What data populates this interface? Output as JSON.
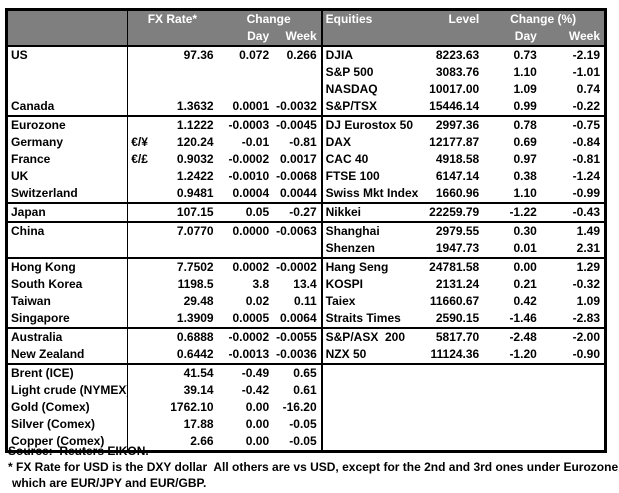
{
  "colors": {
    "header_bg": "#7f7f7f",
    "header_text": "#ffffff",
    "border": "#000000"
  },
  "headers": {
    "fx_rate": "FX Rate*",
    "fx_change": "Change",
    "fx_day": "Day",
    "fx_week": "Week",
    "equities": "Equities",
    "level": "Level",
    "eq_change": "Change (%)",
    "eq_day": "Day",
    "eq_week": "Week"
  },
  "rows": [
    {
      "label": "US",
      "sym": "",
      "rate": "97.36",
      "day": "0.072",
      "week": "0.266",
      "eq": "DJIA",
      "level": "8223.63",
      "eday": "0.73",
      "eweek": "-2.19",
      "sec": false,
      "ind": false
    },
    {
      "label": "",
      "sym": "",
      "rate": "",
      "day": "",
      "week": "",
      "eq": "S&P 500",
      "level": "3083.76",
      "eday": "1.10",
      "eweek": "-1.01",
      "sec": false,
      "ind": false
    },
    {
      "label": "",
      "sym": "",
      "rate": "",
      "day": "",
      "week": "",
      "eq": "NASDAQ",
      "level": "10017.00",
      "eday": "1.09",
      "eweek": "0.74",
      "sec": false,
      "ind": false
    },
    {
      "label": "Canada",
      "sym": "",
      "rate": "1.3632",
      "day": "0.0001",
      "week": "-0.0032",
      "eq": "S&P/TSX",
      "level": "15446.14",
      "eday": "0.99",
      "eweek": "-0.22",
      "sec": false,
      "ind": false
    },
    {
      "label": "Eurozone",
      "sym": "",
      "rate": "1.1222",
      "day": "-0.0003",
      "week": "-0.0045",
      "eq": "DJ Eurostox 50",
      "level": "2997.36",
      "eday": "0.78",
      "eweek": "-0.75",
      "sec": true,
      "ind": false
    },
    {
      "label": "Germany",
      "sym": "€/¥",
      "rate": "120.24",
      "day": "-0.01",
      "week": "-0.81",
      "eq": "DAX",
      "level": "12177.87",
      "eday": "0.69",
      "eweek": "-0.84",
      "sec": false,
      "ind": true
    },
    {
      "label": "France",
      "sym": "€/£",
      "rate": "0.9032",
      "day": "-0.0002",
      "week": "0.0017",
      "eq": "CAC 40",
      "level": "4918.58",
      "eday": "0.97",
      "eweek": "-0.81",
      "sec": false,
      "ind": true
    },
    {
      "label": "UK",
      "sym": "",
      "rate": "1.2422",
      "day": "-0.0010",
      "week": "-0.0068",
      "eq": "FTSE 100",
      "level": "6147.14",
      "eday": "0.38",
      "eweek": "-1.24",
      "sec": false,
      "ind": false
    },
    {
      "label": "Switzerland",
      "sym": "",
      "rate": "0.9481",
      "day": "0.0004",
      "week": "0.0044",
      "eq": "Swiss Mkt Index",
      "level": "1660.96",
      "eday": "1.10",
      "eweek": "-0.99",
      "sec": false,
      "ind": false
    },
    {
      "label": "Japan",
      "sym": "",
      "rate": "107.15",
      "day": "0.05",
      "week": "-0.27",
      "eq": "Nikkei",
      "level": "22259.79",
      "eday": "-1.22",
      "eweek": "-0.43",
      "sec": true,
      "ind": false
    },
    {
      "label": "China",
      "sym": "",
      "rate": "7.0770",
      "day": "0.0000",
      "week": "-0.0063",
      "eq": "Shanghai",
      "level": "2979.55",
      "eday": "0.30",
      "eweek": "1.49",
      "sec": true,
      "ind": false
    },
    {
      "label": "",
      "sym": "",
      "rate": "",
      "day": "",
      "week": "",
      "eq": "Shenzen",
      "level": "1947.73",
      "eday": "0.01",
      "eweek": "2.31",
      "sec": false,
      "ind": false
    },
    {
      "label": "Hong Kong",
      "sym": "",
      "rate": "7.7502",
      "day": "0.0002",
      "week": "-0.0002",
      "eq": "Hang Seng",
      "level": "24781.58",
      "eday": "0.00",
      "eweek": "1.29",
      "sec": true,
      "ind": false
    },
    {
      "label": "South Korea",
      "sym": "",
      "rate": "1198.5",
      "day": "3.8",
      "week": "13.4",
      "eq": "KOSPI",
      "level": "2131.24",
      "eday": "0.21",
      "eweek": "-0.32",
      "sec": false,
      "ind": false
    },
    {
      "label": "Taiwan",
      "sym": "",
      "rate": "29.48",
      "day": "0.02",
      "week": "0.11",
      "eq": "Taiex",
      "level": "11660.67",
      "eday": "0.42",
      "eweek": "1.09",
      "sec": false,
      "ind": false
    },
    {
      "label": "Singapore",
      "sym": "",
      "rate": "1.3909",
      "day": "0.0005",
      "week": "0.0064",
      "eq": "Straits Times",
      "level": "2590.15",
      "eday": "-1.46",
      "eweek": "-2.83",
      "sec": false,
      "ind": false
    },
    {
      "label": "Australia",
      "sym": "",
      "rate": "0.6888",
      "day": "-0.0002",
      "week": "-0.0055",
      "eq": "S&P/ASX  200",
      "level": "5817.70",
      "eday": "-2.48",
      "eweek": "-2.00",
      "sec": true,
      "ind": false
    },
    {
      "label": "New Zealand",
      "sym": "",
      "rate": "0.6442",
      "day": "-0.0013",
      "week": "-0.0036",
      "eq": "NZX 50",
      "level": "11124.36",
      "eday": "-1.20",
      "eweek": "-0.90",
      "sec": false,
      "ind": false
    },
    {
      "label": "Brent (ICE)",
      "sym": "",
      "rate": "41.54",
      "day": "-0.49",
      "week": "0.65",
      "eq": "",
      "level": "",
      "eday": "",
      "eweek": "",
      "sec": true,
      "ind": false
    },
    {
      "label": "Light crude (NYMEX)",
      "sym": "",
      "rate": "39.14",
      "day": "-0.42",
      "week": "0.61",
      "eq": "",
      "level": "",
      "eday": "",
      "eweek": "",
      "sec": false,
      "ind": false
    },
    {
      "label": "Gold (Comex)",
      "sym": "",
      "rate": "1762.10",
      "day": "0.00",
      "week": "-16.20",
      "eq": "",
      "level": "",
      "eday": "",
      "eweek": "",
      "sec": false,
      "ind": false
    },
    {
      "label": "Silver (Comex)",
      "sym": "",
      "rate": "17.88",
      "day": "0.00",
      "week": "-0.05",
      "eq": "",
      "level": "",
      "eday": "",
      "eweek": "",
      "sec": false,
      "ind": false
    },
    {
      "label": "Copper (Comex)",
      "sym": "",
      "rate": "2.66",
      "day": "0.00",
      "week": "-0.05",
      "eq": "",
      "level": "",
      "eday": "",
      "eweek": "",
      "sec": false,
      "ind": false
    }
  ],
  "footer": {
    "source": "Source:  Reuters EIKON.",
    "footnote1": "* FX Rate for USD is the DXY dollar  All others are vs USD, except for the 2nd and 3rd ones under Eurozone,",
    "footnote2": "which are EUR/JPY and EUR/GBP."
  }
}
